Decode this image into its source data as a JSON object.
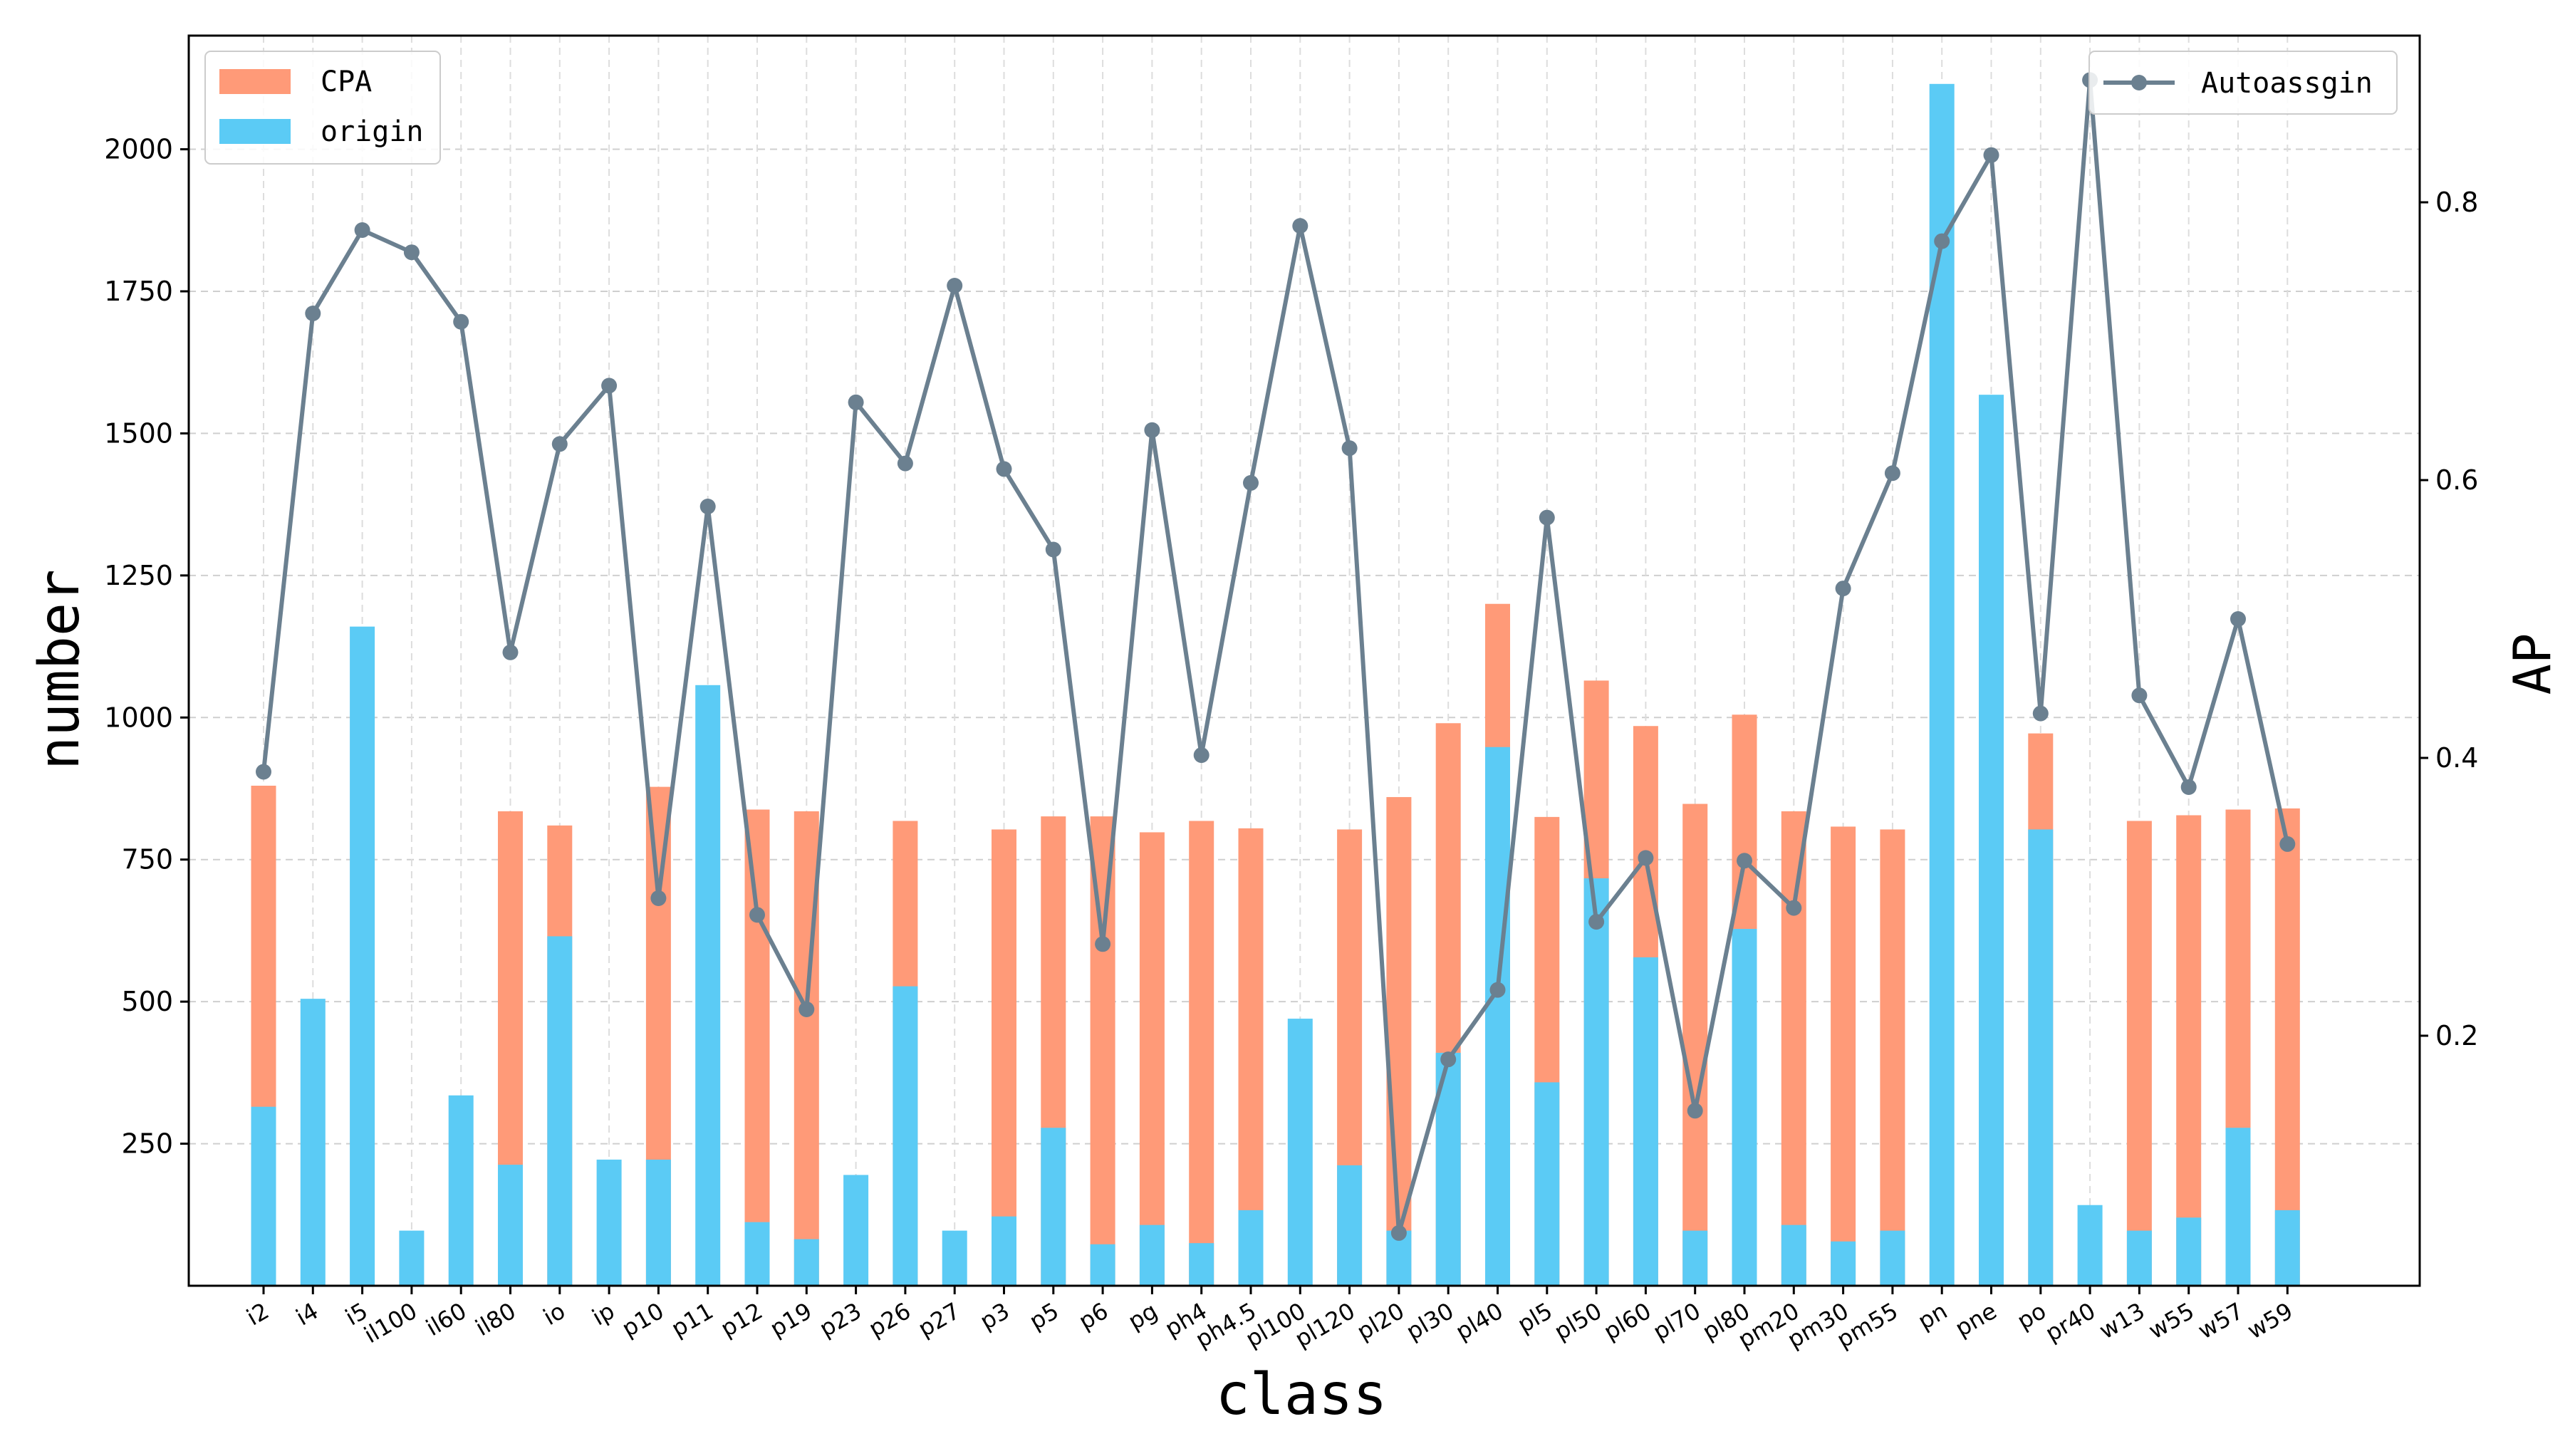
{
  "chart_data": {
    "type": "bar",
    "stacked": true,
    "secondary_type": "line",
    "xlabel": "class",
    "ylabel": "number",
    "y2label": "AP",
    "ylim": [
      0,
      2200
    ],
    "y2lim": [
      0.02,
      0.92
    ],
    "yticks": [
      "250",
      "500",
      "750",
      "1000",
      "1250",
      "1500",
      "1750",
      "2000"
    ],
    "y2ticks": [
      "0.2",
      "0.4",
      "0.6",
      "0.8"
    ],
    "grid": true,
    "legend_left": "top-left",
    "legend_right": "top-right",
    "categories": [
      "i2",
      "i4",
      "i5",
      "il100",
      "il60",
      "il80",
      "io",
      "ip",
      "p10",
      "p11",
      "p12",
      "p19",
      "p23",
      "p26",
      "p27",
      "p3",
      "p5",
      "p6",
      "pg",
      "ph4",
      "ph4.5",
      "pl100",
      "pl120",
      "pl20",
      "pl30",
      "pl40",
      "pl5",
      "pl50",
      "pl60",
      "pl70",
      "pl80",
      "pm20",
      "pm30",
      "pm55",
      "pn",
      "pne",
      "po",
      "pr40",
      "w13",
      "w55",
      "w57",
      "w59"
    ],
    "series": [
      {
        "name": "CPA",
        "color": "#ff9a78",
        "values": [
          880,
          0,
          0,
          0,
          0,
          835,
          810,
          0,
          878,
          0,
          838,
          835,
          0,
          818,
          0,
          803,
          826,
          826,
          798,
          818,
          805,
          0,
          803,
          860,
          990,
          1200,
          825,
          1065,
          985,
          848,
          1005,
          835,
          808,
          803,
          0,
          0,
          972,
          0,
          818,
          828,
          838,
          840
        ]
      },
      {
        "name": "origin",
        "color": "#5bcbf5",
        "values": [
          315,
          505,
          1160,
          97,
          335,
          213,
          615,
          222,
          222,
          1057,
          112,
          82,
          195,
          527,
          97,
          122,
          278,
          73,
          107,
          75,
          133,
          470,
          212,
          97,
          410,
          948,
          358,
          717,
          578,
          97,
          628,
          107,
          78,
          97,
          2115,
          1568,
          803,
          142,
          97,
          120,
          278,
          133
        ]
      }
    ],
    "line_series": {
      "name": "Autoassgin",
      "color": "#6b8090",
      "values": [
        0.39,
        0.72,
        0.78,
        0.764,
        0.714,
        0.476,
        0.626,
        0.668,
        0.299,
        0.581,
        0.287,
        0.219,
        0.656,
        0.612,
        0.74,
        0.608,
        0.55,
        0.266,
        0.636,
        0.402,
        0.598,
        0.783,
        0.623,
        0.058,
        0.183,
        0.233,
        0.573,
        0.282,
        0.328,
        0.146,
        0.326,
        0.292,
        0.522,
        0.605,
        0.772,
        0.834,
        0.432,
        0.888,
        0.445,
        0.379,
        0.5,
        0.338
      ]
    }
  }
}
